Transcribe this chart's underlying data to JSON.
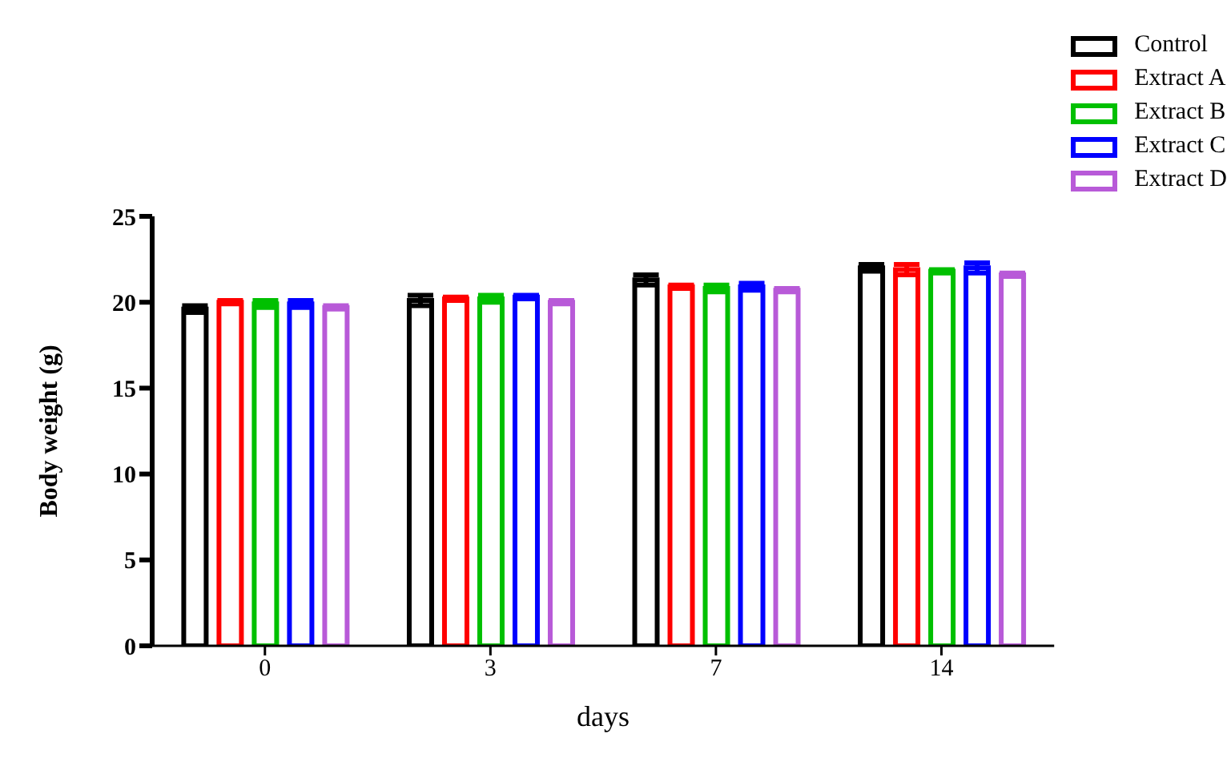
{
  "chart_data": {
    "type": "bar",
    "xlabel": "days",
    "ylabel": "Body weight (g)",
    "categories": [
      "0",
      "3",
      "7",
      "14"
    ],
    "series": [
      {
        "name": "Control",
        "color": "#000000",
        "values": [
          19.6,
          20.1,
          21.3,
          22.0
        ],
        "errors": [
          0.2,
          0.3,
          0.3,
          0.2
        ]
      },
      {
        "name": "Extract A",
        "color": "#ff0000",
        "values": [
          20.0,
          20.2,
          20.9,
          21.9
        ],
        "errors": [
          0.1,
          0.1,
          0.1,
          0.3
        ]
      },
      {
        "name": "Extract B",
        "color": "#00c000",
        "values": [
          19.9,
          20.2,
          20.8,
          21.8
        ],
        "errors": [
          0.2,
          0.2,
          0.2,
          0.1
        ]
      },
      {
        "name": "Extract C",
        "color": "#0000ff",
        "values": [
          19.9,
          20.3,
          20.9,
          22.0
        ],
        "errors": [
          0.2,
          0.1,
          0.2,
          0.3
        ]
      },
      {
        "name": "Extract D",
        "color": "#b85ad8",
        "values": [
          19.7,
          20.0,
          20.7,
          21.6
        ],
        "errors": [
          0.1,
          0.1,
          0.1,
          0.1
        ]
      }
    ],
    "ylim": [
      0,
      25
    ],
    "yticks": [
      0,
      5,
      10,
      15,
      20,
      25
    ],
    "grid": false,
    "legend": "top right"
  }
}
